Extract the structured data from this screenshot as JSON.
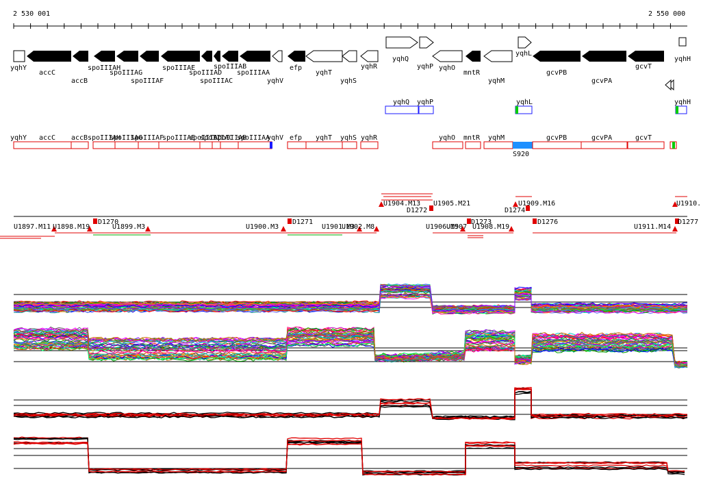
{
  "coords": {
    "start": "2 530 001",
    "end": "2 550 000"
  },
  "genes_top": [
    "yqhY",
    "accC",
    "accB",
    "spoIIIAH",
    "spoIIIAG",
    "spoIIIAF",
    "spoIIIAE",
    "spoIIIAD",
    "spoIIIAC",
    "spoIIIAB",
    "spoIIIAA",
    "yqhV",
    "efp",
    "yqhT",
    "yqhS",
    "yqhR",
    "yqhQ",
    "yqhP",
    "yqhO",
    "mntR",
    "yqhM",
    "yqhL",
    "gcvPB",
    "gcvPA",
    "gcvT",
    "yqhH"
  ],
  "blue_genes": [
    "yqhQ",
    "yqhP",
    "yqhL",
    "yqhH"
  ],
  "red_genes": [
    "yqhY",
    "accC",
    "accB",
    "spoIIIAH",
    "spoIIIAG",
    "spoIIIAF",
    "spoIIIAE",
    "spoIIIAD",
    "spoIIIAC",
    "spoIIIAB",
    "spoIIIAA",
    "yqhV",
    "efp",
    "yqhT",
    "yqhS",
    "yqhR",
    "yqhO",
    "mntR",
    "yqhM",
    "gcvPB",
    "gcvPA",
    "gcvT"
  ],
  "red_feature": "S920",
  "transcripts": [
    "U1897.M11",
    "U1898.M19",
    "U1899.M3",
    "U1900.M3",
    "U1901.M3",
    "U1902.M8",
    "U1904.M13",
    "U1905.M21",
    "U1906.M5",
    "U1907",
    "U1908.M19",
    "U1909.M16",
    "U1910.",
    "U1911.M14"
  ],
  "breakpoints": [
    "D1270",
    "D1271",
    "D1272",
    "D1273",
    "D1274",
    "D1276",
    "D1277"
  ],
  "colors": {
    "forward_gene": "#000000",
    "reverse_gene": "#ffffff",
    "blue_track": "#1a1aff",
    "red_track": "#e00000",
    "highlight": "#1e90ff",
    "green_mark": "#00cc00"
  }
}
